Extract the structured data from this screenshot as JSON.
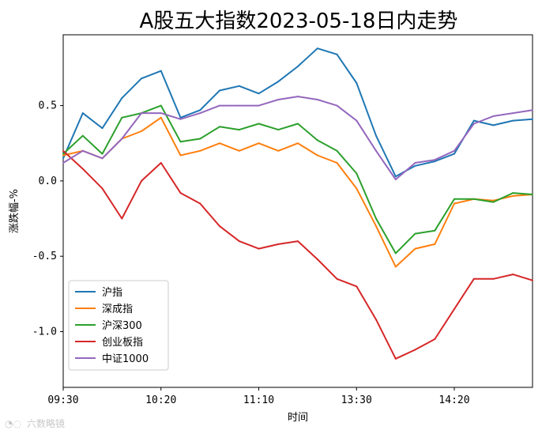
{
  "watermark": "六数略镜",
  "chart_data": {
    "type": "line",
    "title": "A股五大指数2023-05-18日内走势",
    "xlabel": "时间",
    "ylabel": "涨跌幅-%",
    "ylim": [
      -1.37,
      0.97
    ],
    "yticks": [
      0.5,
      0.0,
      -0.5,
      -1.0
    ],
    "ytick_labels": [
      "0.5",
      "0.0",
      "-0.5",
      "-1.0"
    ],
    "xticks": [
      "09:30",
      "10:20",
      "11:10",
      "13:30",
      "14:20"
    ],
    "grid": false,
    "legend_position": "lower-left",
    "x": [
      "09:30",
      "09:40",
      "09:50",
      "10:00",
      "10:10",
      "10:20",
      "10:30",
      "10:40",
      "10:50",
      "11:00",
      "11:10",
      "11:20",
      "11:30",
      "13:10",
      "13:20",
      "13:30",
      "13:40",
      "13:50",
      "14:00",
      "14:10",
      "14:20",
      "14:30",
      "14:40",
      "14:50",
      "15:00"
    ],
    "series": [
      {
        "name": "沪指",
        "color": "#1f77b4",
        "values": [
          0.15,
          0.45,
          0.35,
          0.55,
          0.68,
          0.73,
          0.42,
          0.47,
          0.6,
          0.63,
          0.58,
          0.66,
          0.76,
          0.88,
          0.84,
          0.65,
          0.3,
          0.03,
          0.1,
          0.13,
          0.18,
          0.4,
          0.37,
          0.4,
          0.41
        ]
      },
      {
        "name": "深成指",
        "color": "#ff7f0e",
        "values": [
          0.17,
          0.2,
          0.15,
          0.28,
          0.33,
          0.42,
          0.17,
          0.2,
          0.25,
          0.2,
          0.25,
          0.2,
          0.25,
          0.17,
          0.12,
          -0.05,
          -0.3,
          -0.57,
          -0.45,
          -0.42,
          -0.15,
          -0.12,
          -0.13,
          -0.1,
          -0.09
        ]
      },
      {
        "name": "沪深300",
        "color": "#2ca02c",
        "values": [
          0.18,
          0.3,
          0.18,
          0.42,
          0.45,
          0.5,
          0.26,
          0.28,
          0.36,
          0.34,
          0.38,
          0.34,
          0.38,
          0.27,
          0.2,
          0.05,
          -0.25,
          -0.48,
          -0.35,
          -0.33,
          -0.12,
          -0.12,
          -0.14,
          -0.08,
          -0.09
        ]
      },
      {
        "name": "创业板指",
        "color": "#d62728",
        "values": [
          0.2,
          0.08,
          -0.05,
          -0.25,
          0.0,
          0.12,
          -0.08,
          -0.15,
          -0.3,
          -0.4,
          -0.45,
          -0.42,
          -0.4,
          -0.52,
          -0.65,
          -0.7,
          -0.92,
          -1.18,
          -1.12,
          -1.05,
          -0.85,
          -0.65,
          -0.65,
          -0.62,
          -0.66
        ]
      },
      {
        "name": "中证1000",
        "color": "#9467bd",
        "values": [
          0.12,
          0.2,
          0.15,
          0.28,
          0.45,
          0.45,
          0.41,
          0.45,
          0.5,
          0.5,
          0.5,
          0.54,
          0.56,
          0.54,
          0.5,
          0.4,
          0.2,
          0.01,
          0.12,
          0.14,
          0.2,
          0.38,
          0.43,
          0.45,
          0.47
        ]
      }
    ]
  }
}
